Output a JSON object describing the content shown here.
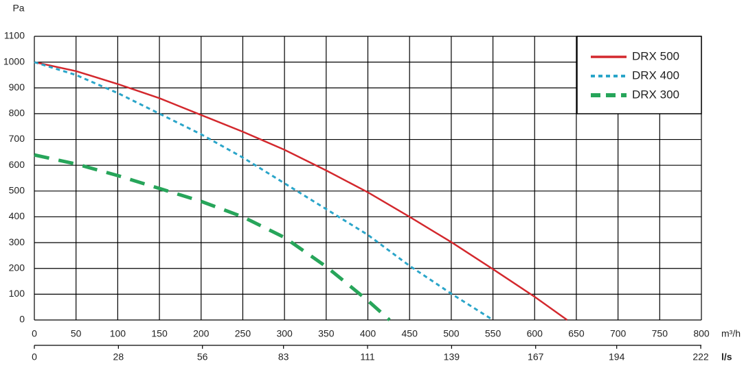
{
  "chart_data": {
    "type": "line",
    "y_label": "Pa",
    "x_label": "m³/h",
    "x2_label": "l/s",
    "xlim": [
      0,
      800
    ],
    "xticks": [
      0,
      50,
      100,
      150,
      200,
      250,
      300,
      350,
      400,
      450,
      500,
      550,
      600,
      650,
      700,
      750,
      800
    ],
    "x2lim": [
      0,
      222.22
    ],
    "x2ticks": [
      0,
      28,
      56,
      83,
      111,
      139,
      167,
      194,
      222
    ],
    "ylim": [
      0,
      1100
    ],
    "yticks": [
      0,
      100,
      200,
      300,
      400,
      500,
      600,
      700,
      800,
      900,
      1000,
      1100
    ],
    "grid": true,
    "legend": "upper right",
    "series": [
      {
        "name": "DRX 500",
        "color": "#d3282d",
        "style": "solid",
        "x": [
          0,
          50,
          100,
          150,
          200,
          250,
          300,
          350,
          400,
          450,
          500,
          550,
          600,
          639
        ],
        "values": [
          1000,
          965,
          915,
          860,
          795,
          730,
          660,
          580,
          495,
          400,
          302,
          197,
          90,
          0
        ]
      },
      {
        "name": "DRX 400",
        "color": "#2aa5c9",
        "style": "dotted",
        "x": [
          0,
          50,
          100,
          150,
          200,
          250,
          300,
          350,
          400,
          450,
          500,
          550
        ],
        "values": [
          1000,
          950,
          880,
          800,
          720,
          630,
          530,
          430,
          330,
          210,
          102,
          0
        ]
      },
      {
        "name": "DRX 300",
        "color": "#27a55a",
        "style": "dashed",
        "x": [
          0,
          50,
          100,
          150,
          200,
          250,
          300,
          350,
          400,
          426
        ],
        "values": [
          640,
          605,
          560,
          510,
          460,
          400,
          320,
          207,
          75,
          0
        ]
      }
    ]
  }
}
